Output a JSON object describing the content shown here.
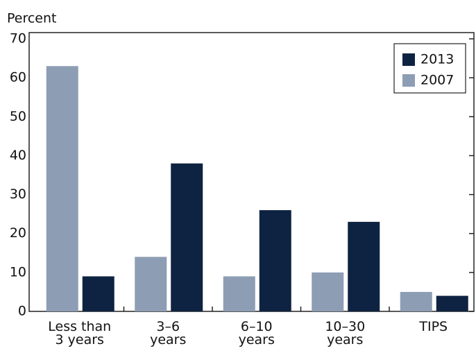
{
  "chart_data": {
    "type": "bar",
    "y_label": "Percent",
    "categories": [
      "Less than\n3 years",
      "3–6\nyears",
      "6–10\nyears",
      "10–30\nyears",
      "TIPS"
    ],
    "series": [
      {
        "name": "2007",
        "color": "#8d9db4",
        "values": [
          63,
          14,
          9,
          10,
          5
        ]
      },
      {
        "name": "2013",
        "color": "#0e2341",
        "values": [
          9,
          38,
          26,
          23,
          4
        ]
      }
    ],
    "ylim": [
      0,
      70
    ],
    "yticks": [
      0,
      10,
      20,
      30,
      40,
      50,
      60,
      70
    ]
  }
}
